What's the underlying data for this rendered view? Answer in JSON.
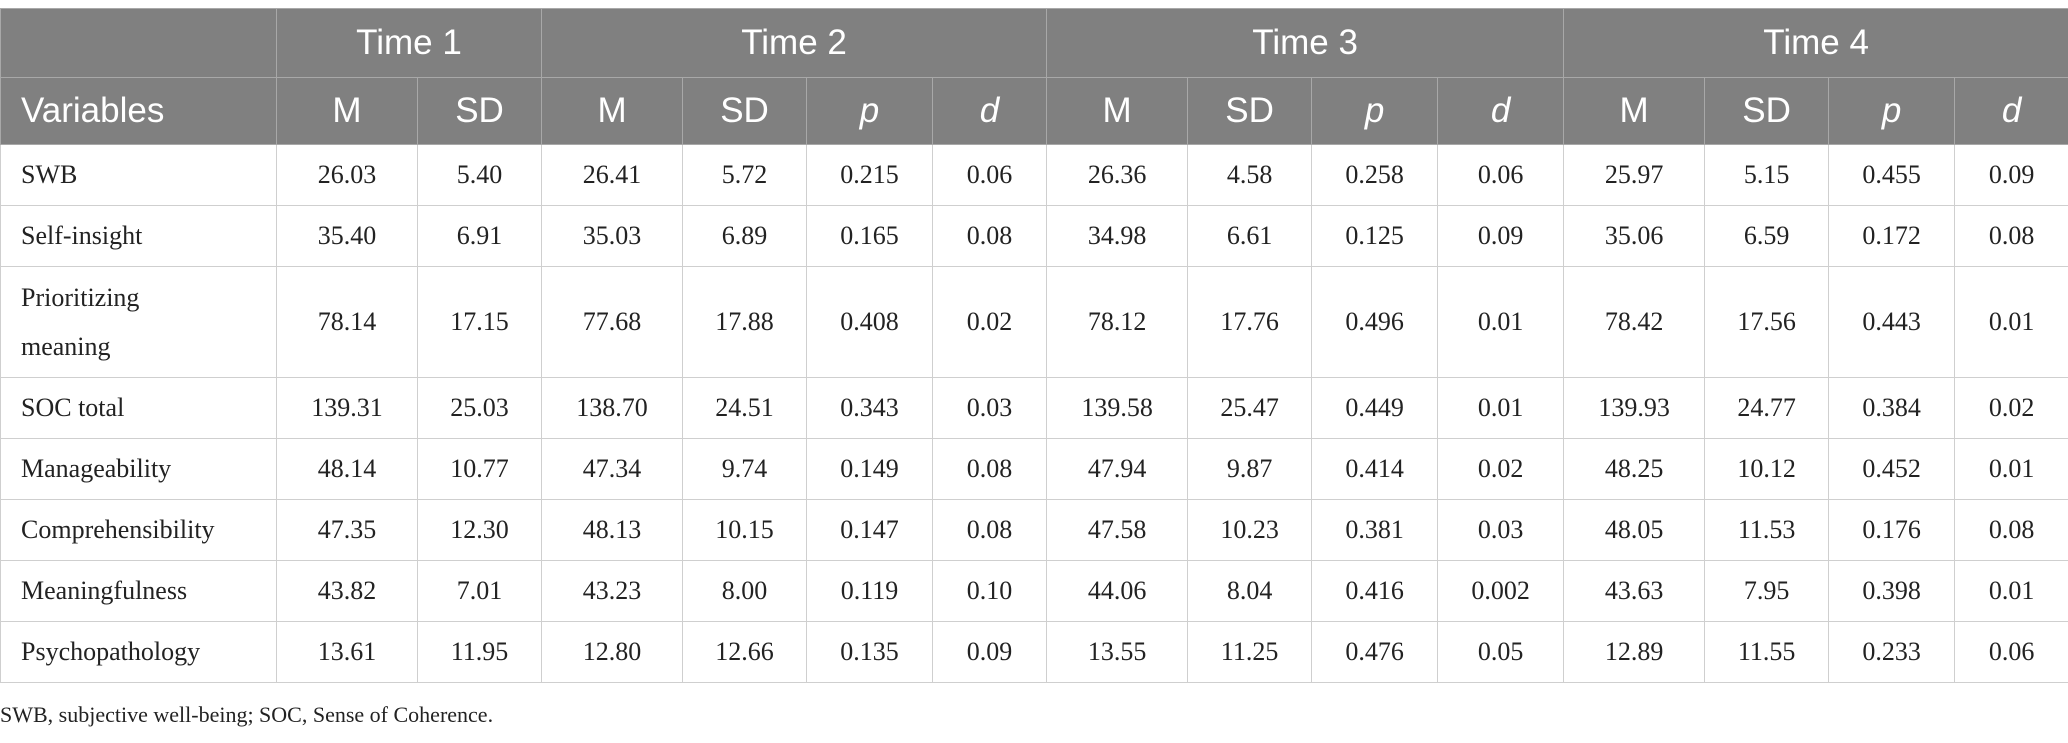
{
  "time_headers": [
    "Time 1",
    "Time 2",
    "Time 3",
    "Time 4"
  ],
  "variables_label": "Variables",
  "col_labels": {
    "m": "M",
    "sd": "SD",
    "p": "p",
    "d": "d"
  },
  "rows": [
    {
      "variable": "SWB",
      "values": [
        "26.03",
        "5.40",
        "26.41",
        "5.72",
        "0.215",
        "0.06",
        "26.36",
        "4.58",
        "0.258",
        "0.06",
        "25.97",
        "5.15",
        "0.455",
        "0.09"
      ]
    },
    {
      "variable": "Self-insight",
      "values": [
        "35.40",
        "6.91",
        "35.03",
        "6.89",
        "0.165",
        "0.08",
        "34.98",
        "6.61",
        "0.125",
        "0.09",
        "35.06",
        "6.59",
        "0.172",
        "0.08"
      ]
    },
    {
      "variable": "Prioritizing meaning",
      "values": [
        "78.14",
        "17.15",
        "77.68",
        "17.88",
        "0.408",
        "0.02",
        "78.12",
        "17.76",
        "0.496",
        "0.01",
        "78.42",
        "17.56",
        "0.443",
        "0.01"
      ]
    },
    {
      "variable": "SOC total",
      "values": [
        "139.31",
        "25.03",
        "138.70",
        "24.51",
        "0.343",
        "0.03",
        "139.58",
        "25.47",
        "0.449",
        "0.01",
        "139.93",
        "24.77",
        "0.384",
        "0.02"
      ]
    },
    {
      "variable": "Manageability",
      "values": [
        "48.14",
        "10.77",
        "47.34",
        "9.74",
        "0.149",
        "0.08",
        "47.94",
        "9.87",
        "0.414",
        "0.02",
        "48.25",
        "10.12",
        "0.452",
        "0.01"
      ]
    },
    {
      "variable": "Comprehensibility",
      "values": [
        "47.35",
        "12.30",
        "48.13",
        "10.15",
        "0.147",
        "0.08",
        "47.58",
        "10.23",
        "0.381",
        "0.03",
        "48.05",
        "11.53",
        "0.176",
        "0.08"
      ]
    },
    {
      "variable": "Meaningfulness",
      "values": [
        "43.82",
        "7.01",
        "43.23",
        "8.00",
        "0.119",
        "0.10",
        "44.06",
        "8.04",
        "0.416",
        "0.002",
        "43.63",
        "7.95",
        "0.398",
        "0.01"
      ]
    },
    {
      "variable": "Psychopathology",
      "values": [
        "13.61",
        "11.95",
        "12.80",
        "12.66",
        "0.135",
        "0.09",
        "13.55",
        "11.25",
        "0.476",
        "0.05",
        "12.89",
        "11.55",
        "0.233",
        "0.06"
      ]
    }
  ],
  "footnote": "SWB, subjective well-being; SOC, Sense of Coherence."
}
